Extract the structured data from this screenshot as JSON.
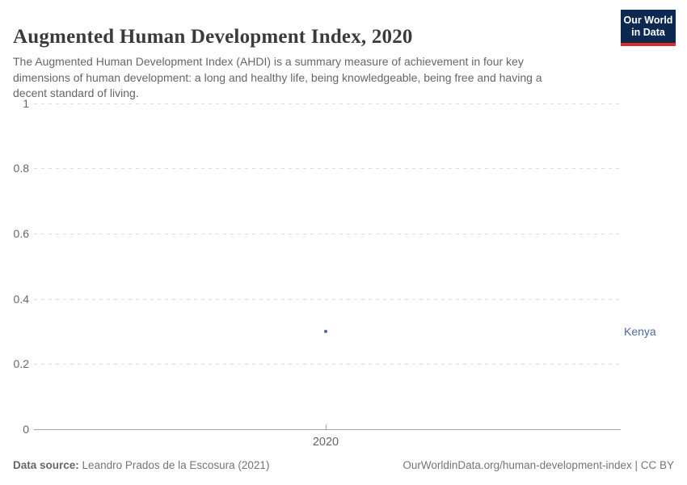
{
  "header": {
    "title": "Augmented Human Development Index, 2020",
    "subtitle": "The Augmented Human Development Index (AHDI) is a summary measure of achievement in four key dimensions of human development: a long and healthy life, being knowledgeable, being free and having a decent standard of living.",
    "logo": {
      "line1": "Our World",
      "line2": "in Data"
    }
  },
  "chart_data": {
    "type": "scatter",
    "title": "Augmented Human Development Index, 2020",
    "x": [
      2020
    ],
    "x_tick_labels": [
      "2020"
    ],
    "y_ticks": [
      0,
      0.2,
      0.4,
      0.6,
      0.8,
      1
    ],
    "y_tick_labels": [
      "0",
      "0.2",
      "0.4",
      "0.6",
      "0.8",
      "1"
    ],
    "ylim": [
      0,
      1
    ],
    "grid": true,
    "series": [
      {
        "name": "Kenya",
        "values": [
          0.3
        ],
        "color": "#4c6a9c"
      }
    ],
    "legend_position": "right-of-point"
  },
  "footer": {
    "datasource_label": "Data source:",
    "datasource_value": "Leandro Prados de la Escosura (2021)",
    "url_text": "OurWorldinData.org/human-development-index | CC BY"
  },
  "colors": {
    "title": "#3b3b3b",
    "subtitle": "#666666",
    "gridline": "#dddddd",
    "axis": "#a5a5a5",
    "tick_label": "#666666",
    "series_blue": "#4c6a9c",
    "logo_navy": "#0c2a50",
    "logo_red": "#dc2d27"
  }
}
